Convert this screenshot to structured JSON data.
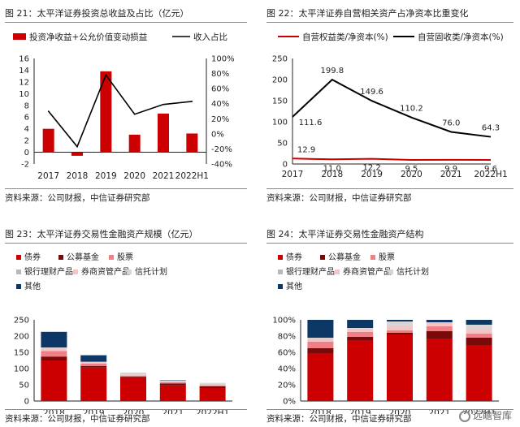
{
  "panels": [
    {
      "title": "图 21：太平洋证券投资总收益及占比（亿元）",
      "source": "资料来源：公司财报，中信证券研究部"
    },
    {
      "title": "图 22：太平洋证券自营相关资产占净资本比重变化",
      "source": "资料来源：公司财报，中信证券研究部"
    },
    {
      "title": "图 23：太平洋证券交易性金融资产规模（亿元）",
      "source": "资料来源：公司财报，中信证券研究部"
    },
    {
      "title": "图 24：太平洋证券交易性金融资产结构",
      "source": "资料来源：公司财报，中信证券研究部"
    }
  ],
  "watermark": "远瞻智库",
  "colors": {
    "red": "#cc0000",
    "dark_red": "#7a0a0a",
    "pink": "#f07f86",
    "gray": "#b8b8b8",
    "light_pink": "#f5c4c4",
    "light_gray": "#d6d6d6",
    "navy": "#0d3866",
    "black": "#000000"
  },
  "chart_data": [
    {
      "type": "bar",
      "categories": [
        "2017",
        "2018",
        "2019",
        "2020",
        "2021",
        "2022H1"
      ],
      "series": [
        {
          "name": "投资净收益+公允价值变动损益",
          "kind": "bar",
          "axis": "left",
          "values": [
            4.0,
            -0.6,
            13.8,
            3.0,
            6.6,
            3.2
          ]
        },
        {
          "name": "收入占比",
          "kind": "line",
          "axis": "right",
          "values": [
            30,
            -17,
            78,
            26,
            39,
            43
          ]
        }
      ],
      "ylim": [
        -2,
        16
      ],
      "yticks": [
        -2,
        0,
        2,
        4,
        6,
        8,
        10,
        12,
        14,
        16
      ],
      "y2lim": [
        -40,
        100
      ],
      "y2ticks": [
        "-40%",
        "-20%",
        "0%",
        "20%",
        "40%",
        "60%",
        "80%",
        "100%"
      ]
    },
    {
      "type": "line",
      "categories": [
        "2017",
        "2018",
        "2019",
        "2020",
        "2021",
        "2022H1"
      ],
      "series": [
        {
          "name": "自营权益类/净资本(%)",
          "values": [
            12.9,
            11.0,
            12.2,
            9.5,
            9.9,
            9.6
          ]
        },
        {
          "name": "自营固收类/净资本(%)",
          "values": [
            111.6,
            199.8,
            149.6,
            110.2,
            76.0,
            64.3
          ]
        }
      ],
      "ylim": [
        0,
        250
      ],
      "yticks": [
        0,
        50,
        100,
        150,
        200,
        250
      ]
    },
    {
      "type": "bar",
      "stacked": true,
      "categories": [
        "2018",
        "2019",
        "2020",
        "2021",
        "2022H1"
      ],
      "series": [
        {
          "name": "债券",
          "values": [
            125,
            103,
            73,
            48,
            40
          ]
        },
        {
          "name": "公募基金",
          "values": [
            12,
            5,
            2,
            6,
            5
          ]
        },
        {
          "name": "股票",
          "values": [
            17,
            7,
            3,
            4,
            3
          ]
        },
        {
          "name": "银行理财产品",
          "values": [
            0,
            0,
            0,
            0,
            0
          ]
        },
        {
          "name": "券商资管产品",
          "values": [
            8,
            4,
            4,
            3,
            5
          ]
        },
        {
          "name": "信托计划",
          "values": [
            3,
            2,
            6,
            3,
            3
          ]
        },
        {
          "name": "其他",
          "values": [
            48,
            20,
            0,
            1,
            0
          ]
        }
      ],
      "ylim": [
        0,
        250
      ],
      "yticks": [
        0,
        50,
        100,
        150,
        200,
        250
      ]
    },
    {
      "type": "bar",
      "stacked": true,
      "percent": true,
      "categories": [
        "2018",
        "2019",
        "2020",
        "2021",
        "2022H1"
      ],
      "series": [
        {
          "name": "债券",
          "values": [
            59,
            75,
            82,
            77,
            69
          ]
        },
        {
          "name": "公募基金",
          "values": [
            6,
            4,
            2,
            9,
            9
          ]
        },
        {
          "name": "股票",
          "values": [
            8,
            6,
            3,
            6,
            5
          ]
        },
        {
          "name": "银行理财产品",
          "values": [
            0,
            0,
            0,
            0,
            0
          ]
        },
        {
          "name": "券商资管产品",
          "values": [
            4,
            3,
            5,
            5,
            6
          ]
        },
        {
          "name": "信托计划",
          "values": [
            1,
            2,
            6,
            0,
            5
          ]
        },
        {
          "name": "其他",
          "values": [
            22,
            10,
            2,
            3,
            6
          ]
        }
      ],
      "ylim": [
        0,
        100
      ],
      "yticks": [
        "0%",
        "20%",
        "40%",
        "60%",
        "80%",
        "100%"
      ]
    }
  ]
}
